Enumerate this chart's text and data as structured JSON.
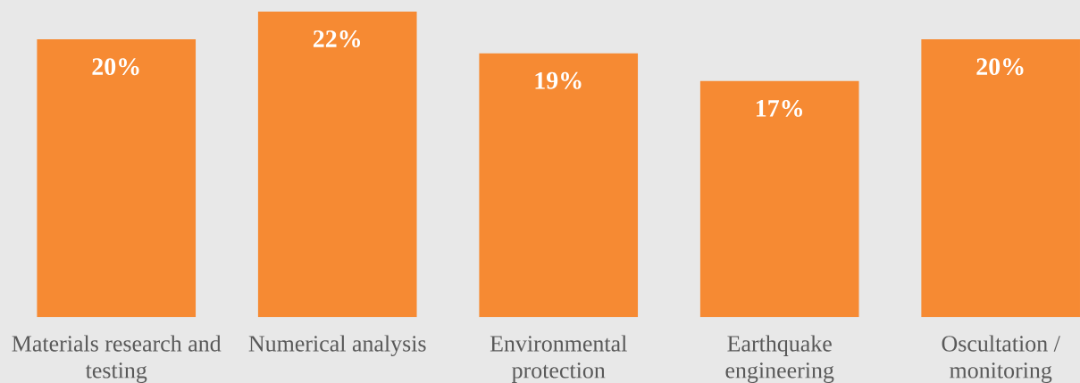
{
  "chart_data": {
    "type": "bar",
    "categories": [
      "Materials research and testing",
      "Numerical analysis",
      "Environmental protection",
      "Earthquake engineering",
      "Oscultation / monitoring"
    ],
    "values": [
      20,
      22,
      19,
      17,
      20
    ],
    "value_labels": [
      "20%",
      "22%",
      "19%",
      "17%",
      "20%"
    ],
    "color": "#f68a33"
  }
}
